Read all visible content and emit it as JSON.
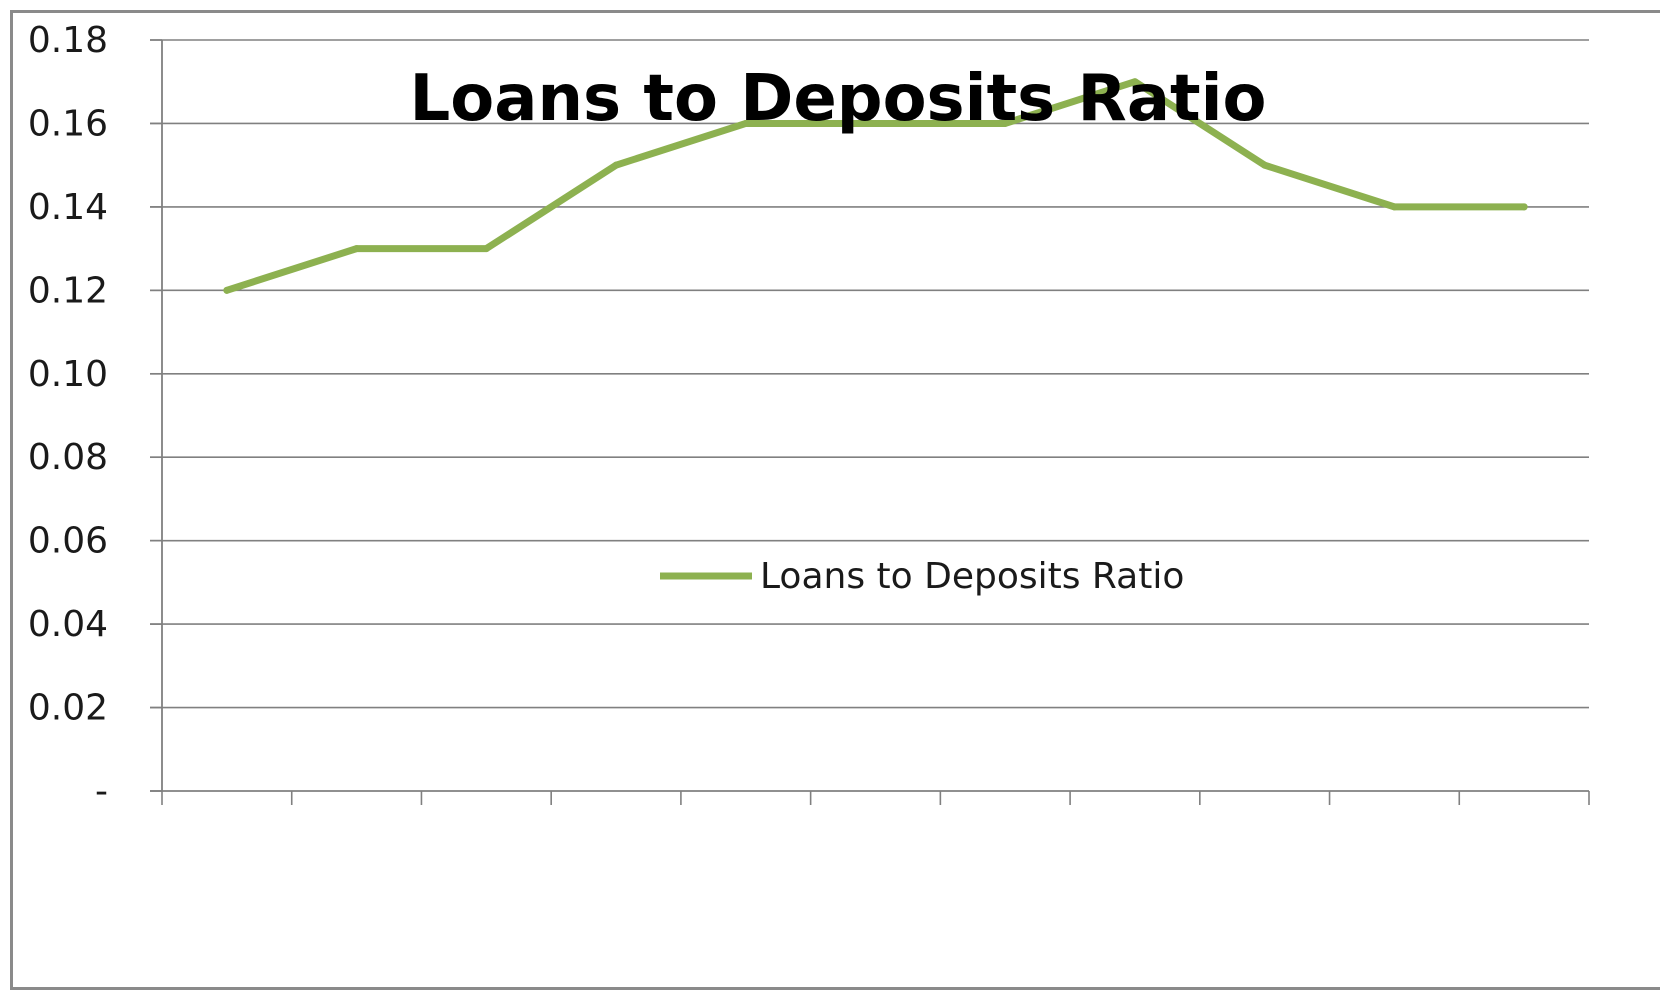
{
  "chart_data": {
    "type": "line",
    "title": "Loans to Deposits Ratio",
    "xlabel": "",
    "ylabel": "",
    "x": [
      1,
      2,
      3,
      4,
      5,
      6,
      7,
      8,
      9,
      10,
      11
    ],
    "ylim": [
      0,
      0.18
    ],
    "yticks": [
      0,
      0.02,
      0.04,
      0.06,
      0.08,
      0.1,
      0.12,
      0.14,
      0.16,
      0.18
    ],
    "ytick_labels": [
      "-",
      "0.02",
      "0.04",
      "0.06",
      "0.08",
      "0.10",
      "0.12",
      "0.14",
      "0.16",
      "0.18"
    ],
    "grid": true,
    "legend_position": "center",
    "series": [
      {
        "name": "Loans to Deposits Ratio",
        "color": "#8db150",
        "values": [
          0.12,
          0.13,
          0.13,
          0.15,
          0.16,
          0.16,
          0.16,
          0.17,
          0.15,
          0.14,
          0.14
        ]
      }
    ]
  }
}
